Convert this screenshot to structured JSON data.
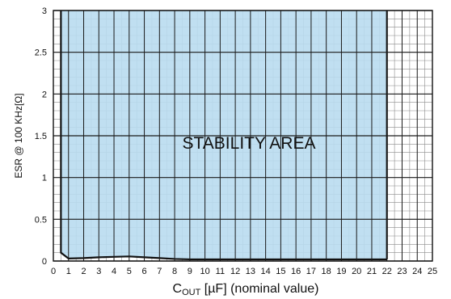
{
  "chart_data": {
    "type": "area",
    "title": "",
    "xlabel": {
      "main": "C",
      "sub": "OUT",
      "rest": " [µF] (nominal value)"
    },
    "ylabel": "ESR @ 100 KHz[Ω]",
    "area_label": "STABILITY AREA",
    "xlim": [
      0,
      25
    ],
    "ylim": [
      0,
      3
    ],
    "x_ticks": [
      "0",
      "1",
      "2",
      "3",
      "4",
      "5",
      "6",
      "7",
      "8",
      "9",
      "10",
      "11",
      "12",
      "13",
      "14",
      "15",
      "16",
      "17",
      "18",
      "19",
      "20",
      "21",
      "22",
      "23",
      "24",
      "25"
    ],
    "y_ticks": [
      "0",
      "0.5",
      "1",
      "1.5",
      "2",
      "2.5",
      "3"
    ],
    "grid": true,
    "series": [
      {
        "x_range": [
          0.5,
          22
        ],
        "upper_y": 3,
        "lower_boundary": [
          {
            "x": 0.5,
            "y": 0.1
          },
          {
            "x": 1,
            "y": 0.03
          },
          {
            "x": 2,
            "y": 0.035
          },
          {
            "x": 3,
            "y": 0.045
          },
          {
            "x": 4,
            "y": 0.05
          },
          {
            "x": 5,
            "y": 0.055
          },
          {
            "x": 6,
            "y": 0.045
          },
          {
            "x": 7,
            "y": 0.035
          },
          {
            "x": 8,
            "y": 0.025
          },
          {
            "x": 9,
            "y": 0.02
          },
          {
            "x": 10,
            "y": 0.02
          },
          {
            "x": 22,
            "y": 0.02
          }
        ]
      }
    ],
    "colors": {
      "fill": "#b9dcef",
      "minor_grid": "#8a8a8a",
      "major_grid": "#1a1a1a",
      "boundary": "#111111"
    }
  }
}
